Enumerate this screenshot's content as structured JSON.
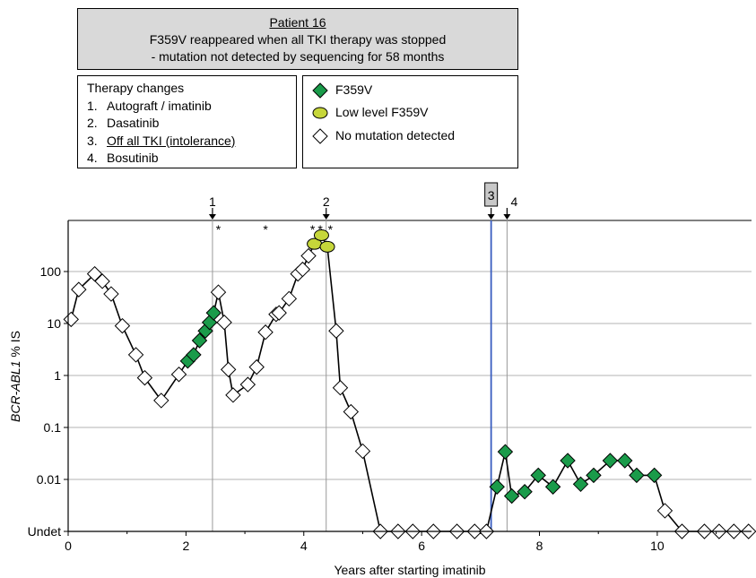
{
  "annotation_title": "Patient 16",
  "annotation_line2": "F359V reappeared when all TKI therapy was stopped",
  "annotation_line3": "- mutation not detected by sequencing for 58 months",
  "therapy": {
    "heading": "Therapy changes",
    "items": [
      {
        "num": "1.",
        "label": "Autograft / imatinib"
      },
      {
        "num": "2.",
        "label": "Dasatinib"
      },
      {
        "num": "3.",
        "label": "Off all TKI (intolerance)"
      },
      {
        "num": "4.",
        "label": "Bosutinib"
      }
    ]
  },
  "colors": {
    "f359v": "#1a9b4a",
    "low_level": "#c6d63a",
    "no_mutation": "#ffffff",
    "off_tki_line": "#3a5ec0",
    "grid": "#b3b3b3",
    "series_line": "#000000"
  },
  "chart_data": {
    "type": "line",
    "xlabel": "Years after starting imatinib",
    "ylabel_italic": "BCR-ABL1",
    "ylabel_rest": " % IS",
    "yscale": "log",
    "xlim": [
      0,
      11.6
    ],
    "xticks": [
      0,
      2,
      4,
      6,
      8,
      10
    ],
    "xtick_labels": [
      "0",
      "2",
      "4",
      "6",
      "8",
      "10"
    ],
    "yticks": [
      "Undet",
      "0.01",
      "0.1",
      "1",
      "10",
      "100"
    ],
    "ytick_values": [
      0.001,
      0.01,
      0.1,
      1,
      10,
      100
    ],
    "grid": "horizontal",
    "legend_placement": "top",
    "legend": [
      {
        "label": "F359V",
        "symbol": "f359v"
      },
      {
        "label": "Low level F359V",
        "symbol": "low"
      },
      {
        "label": "No mutation detected",
        "symbol": "none"
      }
    ],
    "therapy_events": [
      {
        "label": "1",
        "x": 2.45
      },
      {
        "label": "2",
        "x": 4.38
      },
      {
        "label": "3",
        "x": 7.18,
        "boxed": true
      },
      {
        "label": "4",
        "x": 7.45
      }
    ],
    "asterisks": [
      2.55,
      3.35,
      4.15,
      4.28,
      4.45
    ],
    "points": [
      {
        "x": 0.05,
        "y": 12,
        "m": "none"
      },
      {
        "x": 0.18,
        "y": 45,
        "m": "none"
      },
      {
        "x": 0.45,
        "y": 90,
        "m": "none"
      },
      {
        "x": 0.58,
        "y": 65,
        "m": "none"
      },
      {
        "x": 0.73,
        "y": 37,
        "m": "none"
      },
      {
        "x": 0.92,
        "y": 9,
        "m": "none"
      },
      {
        "x": 1.15,
        "y": 2.5,
        "m": "none"
      },
      {
        "x": 1.3,
        "y": 0.9,
        "m": "none"
      },
      {
        "x": 1.58,
        "y": 0.33,
        "m": "none"
      },
      {
        "x": 1.88,
        "y": 1.05,
        "m": "none"
      },
      {
        "x": 2.03,
        "y": 1.9,
        "m": "f359v"
      },
      {
        "x": 2.13,
        "y": 2.5,
        "m": "f359v"
      },
      {
        "x": 2.23,
        "y": 4.7,
        "m": "f359v"
      },
      {
        "x": 2.33,
        "y": 7.2,
        "m": "f359v"
      },
      {
        "x": 2.4,
        "y": 10.5,
        "m": "f359v"
      },
      {
        "x": 2.47,
        "y": 16,
        "m": "f359v"
      },
      {
        "x": 2.55,
        "y": 40,
        "m": "none"
      },
      {
        "x": 2.65,
        "y": 10.5,
        "m": "none"
      },
      {
        "x": 2.72,
        "y": 1.3,
        "m": "none"
      },
      {
        "x": 2.8,
        "y": 0.42,
        "m": "none"
      },
      {
        "x": 3.05,
        "y": 0.67,
        "m": "none"
      },
      {
        "x": 3.2,
        "y": 1.45,
        "m": "none"
      },
      {
        "x": 3.35,
        "y": 6.8,
        "m": "none"
      },
      {
        "x": 3.53,
        "y": 15,
        "m": "none"
      },
      {
        "x": 3.58,
        "y": 16,
        "m": "none"
      },
      {
        "x": 3.75,
        "y": 30,
        "m": "none"
      },
      {
        "x": 3.9,
        "y": 90,
        "m": "none"
      },
      {
        "x": 3.98,
        "y": 110,
        "m": "none"
      },
      {
        "x": 4.08,
        "y": 200,
        "m": "none"
      },
      {
        "x": 4.18,
        "y": 340,
        "m": "low"
      },
      {
        "x": 4.3,
        "y": 500,
        "m": "low"
      },
      {
        "x": 4.4,
        "y": 300,
        "m": "low"
      },
      {
        "x": 4.55,
        "y": 7.2,
        "m": "none"
      },
      {
        "x": 4.62,
        "y": 0.58,
        "m": "none"
      },
      {
        "x": 4.8,
        "y": 0.2,
        "m": "none"
      },
      {
        "x": 5.0,
        "y": 0.035,
        "m": "none"
      },
      {
        "x": 5.3,
        "y": 0.001,
        "m": "none"
      },
      {
        "x": 5.6,
        "y": 0.001,
        "m": "none"
      },
      {
        "x": 5.85,
        "y": 0.001,
        "m": "none"
      },
      {
        "x": 6.2,
        "y": 0.001,
        "m": "none"
      },
      {
        "x": 6.6,
        "y": 0.001,
        "m": "none"
      },
      {
        "x": 6.9,
        "y": 0.001,
        "m": "none"
      },
      {
        "x": 7.1,
        "y": 0.001,
        "m": "none"
      },
      {
        "x": 7.28,
        "y": 0.0072,
        "m": "f359v"
      },
      {
        "x": 7.42,
        "y": 0.034,
        "m": "f359v"
      },
      {
        "x": 7.53,
        "y": 0.0048,
        "m": "f359v"
      },
      {
        "x": 7.75,
        "y": 0.0058,
        "m": "f359v"
      },
      {
        "x": 7.98,
        "y": 0.012,
        "m": "f359v"
      },
      {
        "x": 8.23,
        "y": 0.0072,
        "m": "f359v"
      },
      {
        "x": 8.48,
        "y": 0.023,
        "m": "f359v"
      },
      {
        "x": 8.7,
        "y": 0.0081,
        "m": "f359v"
      },
      {
        "x": 8.92,
        "y": 0.012,
        "m": "f359v"
      },
      {
        "x": 9.2,
        "y": 0.023,
        "m": "f359v"
      },
      {
        "x": 9.45,
        "y": 0.023,
        "m": "f359v"
      },
      {
        "x": 9.65,
        "y": 0.012,
        "m": "f359v"
      },
      {
        "x": 9.95,
        "y": 0.012,
        "m": "f359v"
      },
      {
        "x": 10.13,
        "y": 0.0025,
        "m": "none"
      },
      {
        "x": 10.42,
        "y": 0.001,
        "m": "none"
      },
      {
        "x": 10.8,
        "y": 0.001,
        "m": "none"
      },
      {
        "x": 11.05,
        "y": 0.001,
        "m": "none"
      },
      {
        "x": 11.3,
        "y": 0.001,
        "m": "none"
      },
      {
        "x": 11.55,
        "y": 0.001,
        "m": "none"
      }
    ]
  }
}
